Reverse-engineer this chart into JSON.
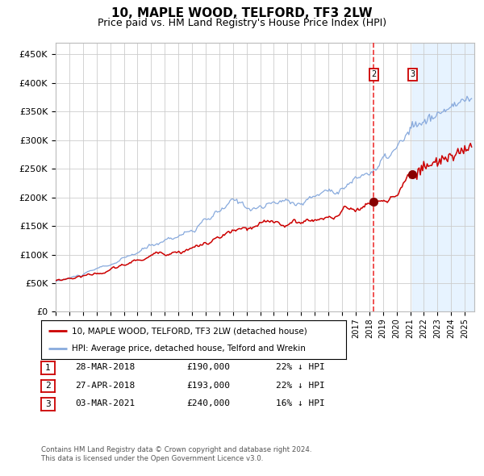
{
  "title": "10, MAPLE WOOD, TELFORD, TF3 2LW",
  "subtitle": "Price paid vs. HM Land Registry's House Price Index (HPI)",
  "title_fontsize": 11,
  "subtitle_fontsize": 9,
  "ylabel_ticks": [
    "£0",
    "£50K",
    "£100K",
    "£150K",
    "£200K",
    "£250K",
    "£300K",
    "£350K",
    "£400K",
    "£450K"
  ],
  "ytick_values": [
    0,
    50000,
    100000,
    150000,
    200000,
    250000,
    300000,
    350000,
    400000,
    450000
  ],
  "ylim": [
    0,
    470000
  ],
  "xlim_start": 1995.0,
  "xlim_end": 2025.7,
  "background_color": "#ffffff",
  "plot_bg_color": "#ffffff",
  "grid_color": "#cccccc",
  "hpi_color": "#88aadd",
  "price_color": "#cc0000",
  "sale_marker_color": "#880000",
  "vline_color": "#ee3333",
  "shade_color": "#ddeeff",
  "transactions": [
    {
      "label": "1",
      "date_num": 2018.22,
      "price": 190000,
      "note": "28-MAR-2018",
      "amount": "£190,000",
      "pct": "22% ↓ HPI"
    },
    {
      "label": "2",
      "date_num": 2018.32,
      "price": 193000,
      "note": "27-APR-2018",
      "amount": "£193,000",
      "pct": "22% ↓ HPI"
    },
    {
      "label": "3",
      "date_num": 2021.17,
      "price": 240000,
      "note": "03-MAR-2021",
      "amount": "£240,000",
      "pct": "16% ↓ HPI"
    }
  ],
  "vline_date": 2018.32,
  "shade_start": 2021.17,
  "shade_end": 2025.7,
  "footer1": "Contains HM Land Registry data © Crown copyright and database right 2024.",
  "footer2": "This data is licensed under the Open Government Licence v3.0.",
  "legend1": "10, MAPLE WOOD, TELFORD, TF3 2LW (detached house)",
  "legend2": "HPI: Average price, detached house, Telford and Wrekin"
}
